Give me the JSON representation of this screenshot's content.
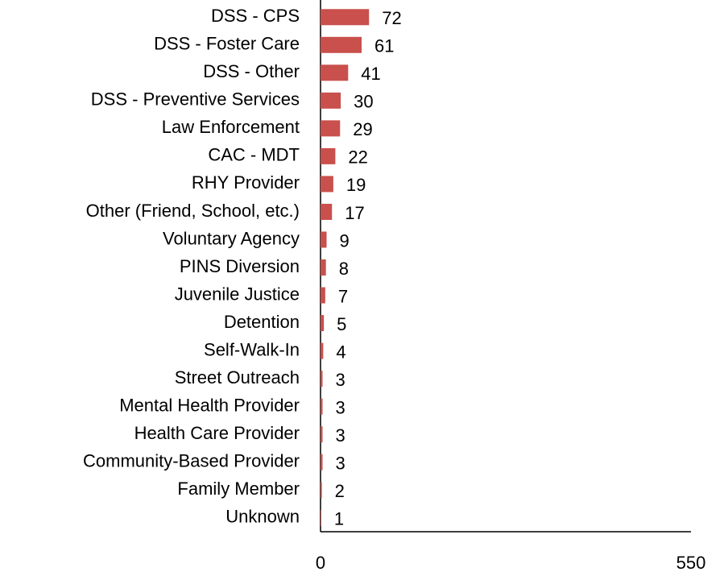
{
  "chart_data": {
    "type": "barh",
    "categories": [
      "DSS - CPS",
      "DSS - Foster Care",
      "DSS - Other",
      "DSS - Preventive Services",
      "Law Enforcement",
      "CAC - MDT",
      "RHY Provider",
      "Other (Friend, School, etc.)",
      "Voluntary Agency",
      "PINS Diversion",
      "Juvenile Justice",
      "Detention",
      "Self-Walk-In",
      "Street Outreach",
      "Mental Health Provider",
      "Health Care Provider",
      "Community-Based Provider",
      "Family Member",
      "Unknown"
    ],
    "values": [
      72,
      61,
      41,
      30,
      29,
      22,
      19,
      17,
      9,
      8,
      7,
      5,
      4,
      3,
      3,
      3,
      3,
      2,
      1
    ],
    "color": "#c9504c",
    "xlim": [
      0,
      550
    ],
    "xticks": [
      0,
      550
    ],
    "grid": false
  }
}
